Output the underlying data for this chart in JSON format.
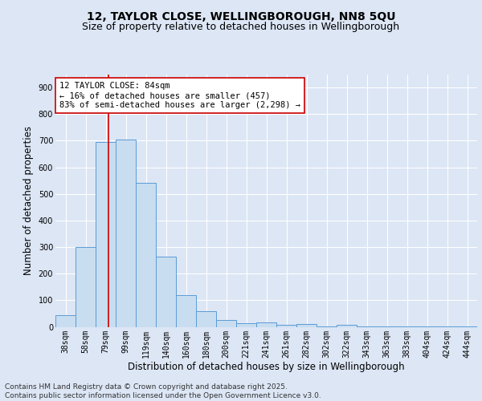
{
  "title1": "12, TAYLOR CLOSE, WELLINGBOROUGH, NN8 5QU",
  "title2": "Size of property relative to detached houses in Wellingborough",
  "xlabel": "Distribution of detached houses by size in Wellingborough",
  "ylabel": "Number of detached properties",
  "categories": [
    "38sqm",
    "58sqm",
    "79sqm",
    "99sqm",
    "119sqm",
    "140sqm",
    "160sqm",
    "180sqm",
    "200sqm",
    "221sqm",
    "241sqm",
    "261sqm",
    "282sqm",
    "302sqm",
    "322sqm",
    "343sqm",
    "363sqm",
    "383sqm",
    "404sqm",
    "424sqm",
    "444sqm"
  ],
  "values": [
    45,
    300,
    695,
    705,
    540,
    265,
    120,
    58,
    25,
    15,
    18,
    8,
    10,
    2,
    8,
    2,
    2,
    2,
    2,
    2,
    2
  ],
  "bar_color": "#c9ddf0",
  "bar_edge_color": "#5b9bd5",
  "background_color": "#dce6f5",
  "grid_color": "#ffffff",
  "vline_color": "#cc0000",
  "vline_x": 2.15,
  "annotation_text": "12 TAYLOR CLOSE: 84sqm\n← 16% of detached houses are smaller (457)\n83% of semi-detached houses are larger (2,298) →",
  "annotation_box_color": "#ffffff",
  "annotation_box_edge": "#cc0000",
  "ylim": [
    0,
    950
  ],
  "yticks": [
    0,
    100,
    200,
    300,
    400,
    500,
    600,
    700,
    800,
    900
  ],
  "footnote": "Contains HM Land Registry data © Crown copyright and database right 2025.\nContains public sector information licensed under the Open Government Licence v3.0.",
  "title1_fontsize": 10,
  "title2_fontsize": 9,
  "xlabel_fontsize": 8.5,
  "ylabel_fontsize": 8.5,
  "tick_fontsize": 7,
  "annotation_fontsize": 7.5,
  "footnote_fontsize": 6.5
}
